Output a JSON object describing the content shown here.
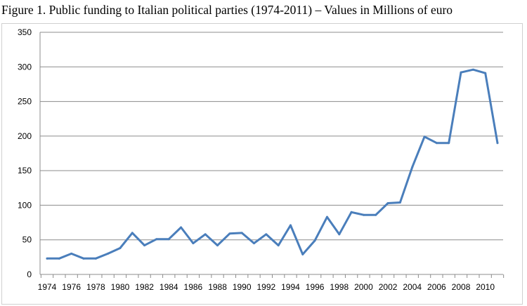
{
  "figure": {
    "title": "Figure 1. Public funding to Italian political parties (1974-2011) – Values in Millions of euro"
  },
  "chart_data": {
    "type": "line",
    "title": "Figure 1. Public funding to Italian political parties (1974-2011) – Values in Millions of euro",
    "xlabel": "",
    "ylabel": "",
    "ylim": [
      0,
      350
    ],
    "yticks": [
      0,
      50,
      100,
      150,
      200,
      250,
      300,
      350
    ],
    "xticks": [
      1974,
      1976,
      1978,
      1980,
      1982,
      1984,
      1986,
      1988,
      1990,
      1992,
      1994,
      1996,
      1998,
      2000,
      2002,
      2004,
      2006,
      2008,
      2010
    ],
    "grid": true,
    "legend": "none",
    "line_color": "#4a7ebb",
    "x": [
      1974,
      1975,
      1976,
      1977,
      1978,
      1979,
      1980,
      1981,
      1982,
      1983,
      1984,
      1985,
      1986,
      1987,
      1988,
      1989,
      1990,
      1991,
      1992,
      1993,
      1994,
      1995,
      1996,
      1997,
      1998,
      1999,
      2000,
      2001,
      2002,
      2003,
      2004,
      2005,
      2006,
      2007,
      2008,
      2009,
      2010,
      2011
    ],
    "values": [
      23,
      23,
      30,
      23,
      23,
      30,
      38,
      60,
      42,
      51,
      51,
      68,
      45,
      58,
      42,
      59,
      60,
      45,
      58,
      42,
      71,
      29,
      49,
      83,
      58,
      90,
      86,
      86,
      103,
      104,
      155,
      199,
      190,
      190,
      292,
      296,
      291,
      190
    ]
  }
}
